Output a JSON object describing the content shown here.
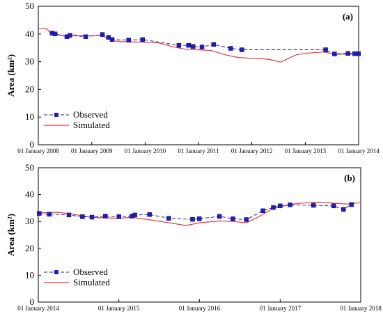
{
  "chart_data": [
    {
      "type": "line",
      "panel_label": "(a)",
      "ylabel": "Area (km²)",
      "ylim": [
        0,
        50
      ],
      "y_ticks": [
        0,
        10,
        20,
        30,
        40,
        50
      ],
      "xlim": [
        "2008-01-01",
        "2014-01-01"
      ],
      "x_ticks": [
        "2008-01-01",
        "2009-01-01",
        "2010-01-01",
        "2011-01-01",
        "2012-01-01",
        "2013-01-01",
        "2014-01-01"
      ],
      "x_tick_labels": [
        "01 January 2008",
        "01 January 2009",
        "01 January 2010",
        "01 January 2011",
        "01 January 2012",
        "01 January 2013",
        "01 January 2014"
      ],
      "legend": {
        "position": "bottom-left",
        "entries": [
          "Observed",
          "Simulated"
        ]
      },
      "series": [
        {
          "name": "Observed",
          "style": "dashed-square-marker",
          "color": "#1f1fb4",
          "points": [
            [
              "2008-04-05",
              40.3
            ],
            [
              "2008-04-25",
              40.0
            ],
            [
              "2008-07-15",
              39.0
            ],
            [
              "2008-08-05",
              39.5
            ],
            [
              "2008-11-20",
              39.0
            ],
            [
              "2009-03-15",
              39.8
            ],
            [
              "2009-04-25",
              38.8
            ],
            [
              "2009-05-20",
              38.0
            ],
            [
              "2009-09-10",
              37.8
            ],
            [
              "2009-12-15",
              38.0
            ],
            [
              "2010-08-20",
              35.9
            ],
            [
              "2010-10-25",
              35.9
            ],
            [
              "2010-11-25",
              35.5
            ],
            [
              "2011-01-25",
              35.3
            ],
            [
              "2011-04-15",
              36.2
            ],
            [
              "2011-08-10",
              34.8
            ],
            [
              "2011-10-25",
              34.3
            ],
            [
              "2013-05-20",
              34.3
            ],
            [
              "2013-07-20",
              32.8
            ],
            [
              "2013-10-20",
              33.0
            ],
            [
              "2013-12-05",
              32.9
            ],
            [
              "2013-12-31",
              32.9
            ]
          ]
        },
        {
          "name": "Simulated",
          "style": "solid",
          "color": "#e8373b",
          "points": [
            [
              "2008-01-01",
              42.0
            ],
            [
              "2008-03-01",
              41.8
            ],
            [
              "2008-03-20",
              40.5
            ],
            [
              "2008-05-01",
              40.0
            ],
            [
              "2008-07-01",
              39.2
            ],
            [
              "2008-09-01",
              39.6
            ],
            [
              "2009-01-01",
              39.3
            ],
            [
              "2009-03-01",
              39.6
            ],
            [
              "2009-05-01",
              38.2
            ],
            [
              "2009-06-01",
              37.5
            ],
            [
              "2009-08-01",
              37.2
            ],
            [
              "2010-01-01",
              37.0
            ],
            [
              "2010-04-01",
              36.8
            ],
            [
              "2010-07-01",
              35.5
            ],
            [
              "2010-10-01",
              34.5
            ],
            [
              "2011-01-01",
              34.3
            ],
            [
              "2011-04-01",
              34.0
            ],
            [
              "2011-07-01",
              32.5
            ],
            [
              "2011-10-01",
              31.5
            ],
            [
              "2012-01-01",
              31.2
            ],
            [
              "2012-04-01",
              31.0
            ],
            [
              "2012-06-01",
              30.5
            ],
            [
              "2012-07-15",
              29.8
            ],
            [
              "2012-09-01",
              31.0
            ],
            [
              "2012-11-01",
              32.5
            ],
            [
              "2013-01-01",
              33.0
            ],
            [
              "2013-05-01",
              33.5
            ],
            [
              "2013-07-01",
              33.0
            ],
            [
              "2013-08-01",
              32.6
            ],
            [
              "2013-10-01",
              32.8
            ],
            [
              "2014-01-01",
              32.6
            ]
          ]
        }
      ]
    },
    {
      "type": "line",
      "panel_label": "(b)",
      "ylabel": "Area (km²)",
      "ylim": [
        0,
        50
      ],
      "y_ticks": [
        0,
        10,
        20,
        30,
        40,
        50
      ],
      "xlim": [
        "2014-01-01",
        "2018-01-01"
      ],
      "x_ticks": [
        "2014-01-01",
        "2015-01-01",
        "2016-01-01",
        "2017-01-01",
        "2018-01-01"
      ],
      "x_tick_labels": [
        "01 January 2014",
        "01 January 2015",
        "01 January 2016",
        "01 January 2017",
        "01 January 2018"
      ],
      "legend": {
        "position": "bottom-left",
        "entries": [
          "Observed",
          "Simulated"
        ]
      },
      "series": [
        {
          "name": "Observed",
          "style": "dashed-square-marker",
          "color": "#1f1fb4",
          "points": [
            [
              "2014-01-05",
              33.0
            ],
            [
              "2014-02-20",
              32.7
            ],
            [
              "2014-05-20",
              32.4
            ],
            [
              "2014-07-20",
              31.8
            ],
            [
              "2014-09-01",
              31.6
            ],
            [
              "2014-11-01",
              32.0
            ],
            [
              "2015-01-01",
              31.8
            ],
            [
              "2015-03-01",
              32.0
            ],
            [
              "2015-03-15",
              32.4
            ],
            [
              "2015-05-20",
              32.6
            ],
            [
              "2015-08-15",
              31.2
            ],
            [
              "2015-12-01",
              30.8
            ],
            [
              "2016-01-01",
              31.0
            ],
            [
              "2016-04-01",
              31.9
            ],
            [
              "2016-06-01",
              31.0
            ],
            [
              "2016-08-01",
              30.7
            ],
            [
              "2016-10-15",
              34.0
            ],
            [
              "2016-12-01",
              35.2
            ],
            [
              "2017-01-01",
              35.8
            ],
            [
              "2017-02-15",
              36.2
            ],
            [
              "2017-06-01",
              36.0
            ],
            [
              "2017-09-01",
              35.8
            ],
            [
              "2017-10-15",
              34.5
            ],
            [
              "2017-11-20",
              36.3
            ]
          ]
        },
        {
          "name": "Simulated",
          "style": "solid",
          "color": "#e8373b",
          "points": [
            [
              "2014-01-01",
              33.2
            ],
            [
              "2014-04-01",
              33.4
            ],
            [
              "2014-06-01",
              32.8
            ],
            [
              "2014-09-01",
              31.5
            ],
            [
              "2015-01-01",
              31.2
            ],
            [
              "2015-03-01",
              31.5
            ],
            [
              "2015-06-01",
              30.5
            ],
            [
              "2015-09-01",
              29.3
            ],
            [
              "2015-11-01",
              28.5
            ],
            [
              "2016-01-01",
              29.5
            ],
            [
              "2016-04-01",
              30.2
            ],
            [
              "2016-06-01",
              30.0
            ],
            [
              "2016-08-01",
              29.5
            ],
            [
              "2016-10-01",
              32.0
            ],
            [
              "2016-12-01",
              35.0
            ],
            [
              "2017-01-01",
              35.5
            ],
            [
              "2017-03-01",
              36.5
            ],
            [
              "2017-05-01",
              37.0
            ],
            [
              "2017-07-01",
              37.2
            ],
            [
              "2017-09-01",
              36.8
            ],
            [
              "2017-11-01",
              36.5
            ],
            [
              "2018-01-01",
              37.0
            ]
          ]
        }
      ]
    }
  ]
}
